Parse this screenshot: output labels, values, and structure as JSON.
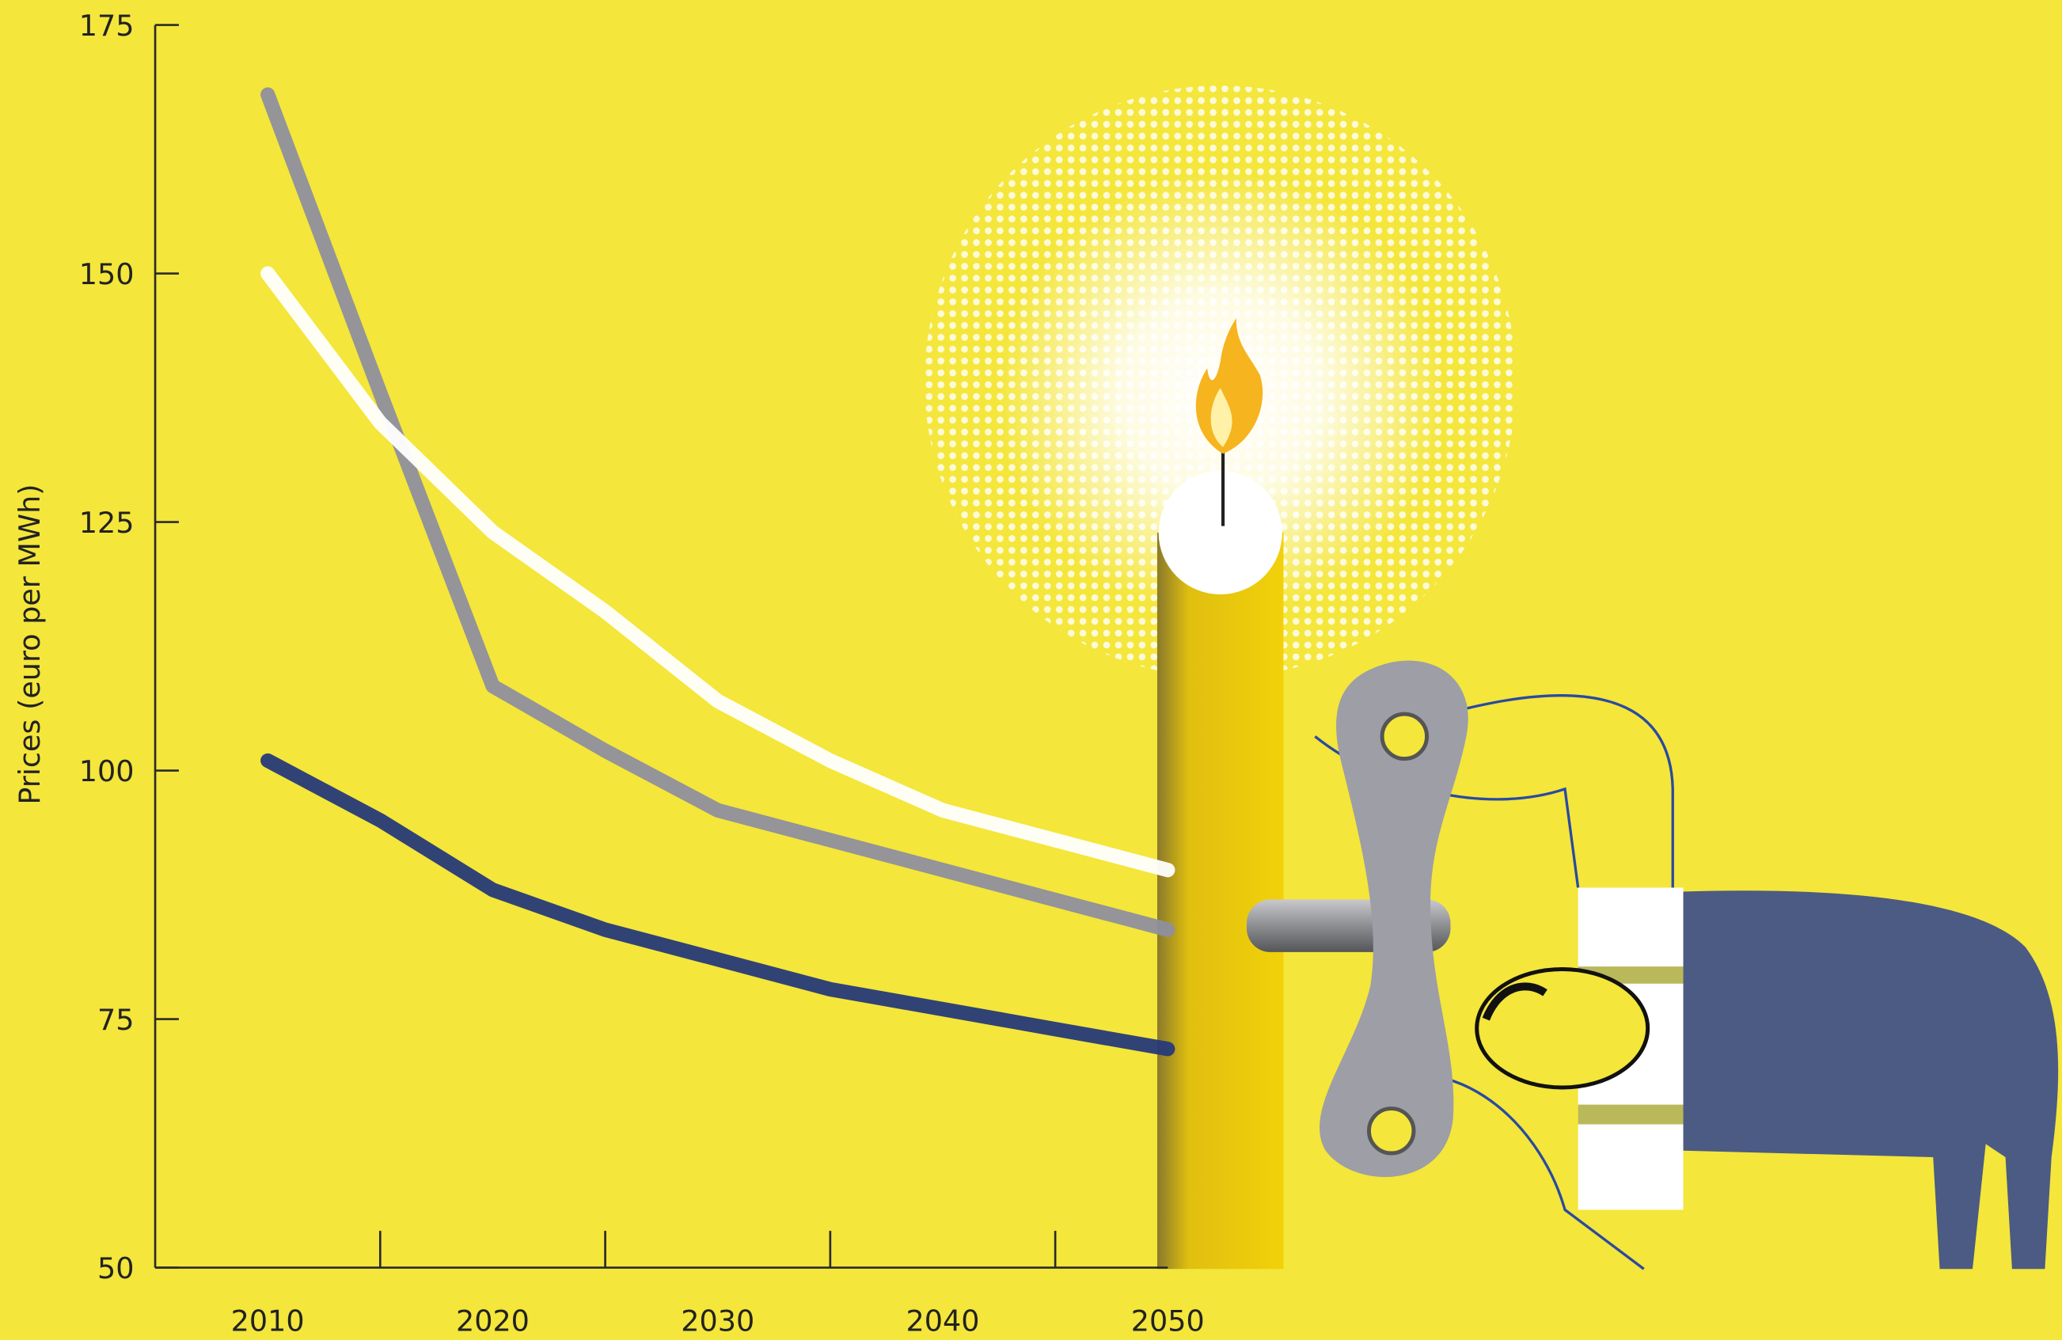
{
  "chart_data": {
    "type": "line",
    "ylabel": "Prices (euro per MWh)",
    "x": [
      2010,
      2015,
      2020,
      2025,
      2030,
      2035,
      2040,
      2045,
      2050
    ],
    "series": [
      {
        "color": "#8e8f9e",
        "values": [
          168,
          138,
          108.5,
          102,
          96,
          93,
          90,
          87,
          84
        ]
      },
      {
        "color": "#ffffff",
        "values": [
          150,
          135,
          124,
          116,
          107,
          101,
          96,
          93,
          90
        ]
      },
      {
        "color": "#263a78",
        "values": [
          101,
          95,
          88,
          84,
          81,
          78,
          76,
          74,
          72
        ]
      }
    ],
    "xlim": [
      2005,
      2050
    ],
    "xticks": [
      2010,
      2020,
      2030,
      2040,
      2050
    ],
    "xminorticks": [
      2015,
      2025,
      2035,
      2045
    ],
    "ylim": [
      50,
      175
    ],
    "yticks": [
      50,
      75,
      100,
      125,
      150,
      175
    ]
  }
}
